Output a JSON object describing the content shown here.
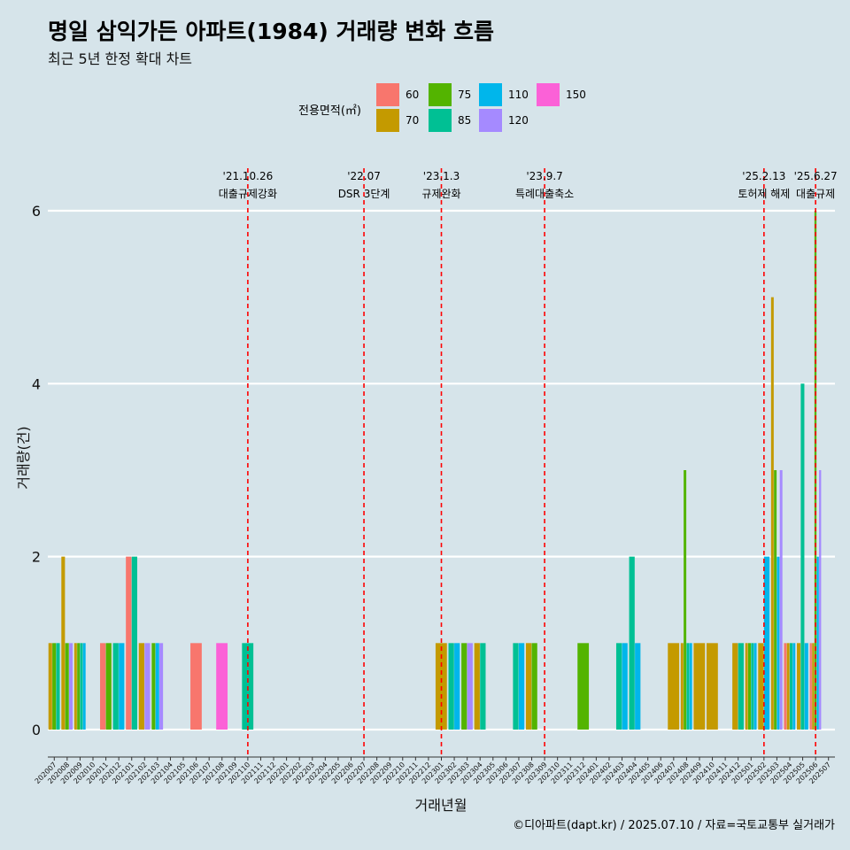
{
  "title": "명일 삼익가든 아파트(1984) 거래량 변화 흐름",
  "subtitle": "최근 5년 한정 확대 차트",
  "caption": "©디아파트(dapt.kr) / 2025.07.10 / 자료=국토교통부 실거래가",
  "legend": {
    "title": "전용면적(㎡)",
    "items": [
      {
        "label": "60",
        "color": "#F8766D"
      },
      {
        "label": "70",
        "color": "#C49A00"
      },
      {
        "label": "75",
        "color": "#53B400"
      },
      {
        "label": "85",
        "color": "#00C094"
      },
      {
        "label": "110",
        "color": "#00B6EB"
      },
      {
        "label": "120",
        "color": "#A58AFF"
      },
      {
        "label": "150",
        "color": "#FB61D7"
      }
    ]
  },
  "chart_data": {
    "type": "bar",
    "xlabel": "거래년월",
    "ylabel": "거래량(건)",
    "ylim": [
      0,
      6.3
    ],
    "yticks": [
      0,
      2,
      4,
      6
    ],
    "grid": true,
    "legend_position": "top",
    "categories": [
      "202007",
      "202008",
      "202009",
      "202010",
      "202011",
      "202012",
      "202101",
      "202102",
      "202103",
      "202104",
      "202105",
      "202106",
      "202107",
      "202108",
      "202109",
      "202110",
      "202111",
      "202112",
      "202201",
      "202202",
      "202203",
      "202204",
      "202205",
      "202206",
      "202207",
      "202208",
      "202209",
      "202210",
      "202211",
      "202212",
      "202301",
      "202302",
      "202303",
      "202304",
      "202305",
      "202306",
      "202307",
      "202308",
      "202309",
      "202310",
      "202311",
      "202312",
      "202401",
      "202402",
      "202403",
      "202404",
      "202405",
      "202406",
      "202407",
      "202408",
      "202409",
      "202410",
      "202411",
      "202412",
      "202501",
      "202502",
      "202503",
      "202504",
      "202505",
      "202506",
      "202507"
    ],
    "series": [
      {
        "name": "60",
        "color": "#F8766D",
        "values": [
          0,
          0,
          0,
          0,
          1,
          0,
          2,
          0,
          0,
          0,
          0,
          1,
          0,
          0,
          0,
          0,
          0,
          0,
          0,
          0,
          0,
          0,
          0,
          0,
          0,
          0,
          0,
          0,
          0,
          0,
          0,
          0,
          0,
          0,
          0,
          0,
          0,
          0,
          0,
          0,
          0,
          0,
          0,
          0,
          0,
          0,
          0,
          0,
          0,
          0,
          0,
          0,
          0,
          0,
          0,
          0,
          0,
          1,
          0,
          1,
          0
        ]
      },
      {
        "name": "70",
        "color": "#C49A00",
        "values": [
          1,
          2,
          1,
          0,
          0,
          0,
          0,
          1,
          0,
          0,
          0,
          0,
          0,
          0,
          0,
          0,
          0,
          0,
          0,
          0,
          0,
          0,
          0,
          0,
          0,
          0,
          0,
          0,
          0,
          0,
          1,
          0,
          0,
          1,
          0,
          0,
          0,
          1,
          0,
          0,
          0,
          0,
          0,
          0,
          0,
          0,
          0,
          0,
          1,
          1,
          1,
          1,
          0,
          1,
          1,
          1,
          5,
          1,
          1,
          1,
          0
        ]
      },
      {
        "name": "75",
        "color": "#53B400",
        "values": [
          1,
          1,
          1,
          0,
          1,
          0,
          0,
          0,
          1,
          0,
          0,
          0,
          0,
          0,
          0,
          0,
          0,
          0,
          0,
          0,
          0,
          0,
          0,
          0,
          0,
          0,
          0,
          0,
          0,
          0,
          0,
          0,
          1,
          0,
          0,
          0,
          0,
          1,
          0,
          0,
          0,
          1,
          0,
          0,
          0,
          0,
          0,
          0,
          0,
          3,
          0,
          0,
          0,
          0,
          1,
          0,
          3,
          0,
          0,
          6,
          0
        ]
      },
      {
        "name": "85",
        "color": "#00C094",
        "values": [
          1,
          0,
          1,
          0,
          0,
          1,
          2,
          0,
          0,
          0,
          0,
          0,
          0,
          0,
          0,
          1,
          0,
          0,
          0,
          0,
          0,
          0,
          0,
          0,
          0,
          0,
          0,
          0,
          0,
          0,
          0,
          1,
          0,
          1,
          0,
          0,
          1,
          0,
          0,
          0,
          0,
          0,
          0,
          0,
          1,
          2,
          0,
          0,
          0,
          1,
          0,
          0,
          0,
          1,
          1,
          0,
          0,
          1,
          4,
          0,
          0
        ]
      },
      {
        "name": "110",
        "color": "#00B6EB",
        "values": [
          0,
          0,
          1,
          0,
          0,
          1,
          0,
          0,
          1,
          0,
          0,
          0,
          0,
          0,
          0,
          0,
          0,
          0,
          0,
          0,
          0,
          0,
          0,
          0,
          0,
          0,
          0,
          0,
          0,
          0,
          0,
          1,
          0,
          0,
          0,
          0,
          1,
          0,
          0,
          0,
          0,
          0,
          0,
          0,
          1,
          1,
          0,
          0,
          0,
          1,
          0,
          0,
          0,
          0,
          1,
          2,
          2,
          1,
          1,
          2,
          0
        ]
      },
      {
        "name": "120",
        "color": "#A58AFF",
        "values": [
          0,
          1,
          0,
          0,
          0,
          0,
          0,
          1,
          1,
          0,
          0,
          0,
          0,
          0,
          0,
          0,
          0,
          0,
          0,
          0,
          0,
          0,
          0,
          0,
          0,
          0,
          0,
          0,
          0,
          0,
          0,
          0,
          1,
          0,
          0,
          0,
          0,
          0,
          0,
          0,
          0,
          0,
          0,
          0,
          0,
          0,
          0,
          0,
          0,
          0,
          0,
          0,
          0,
          0,
          0,
          0,
          3,
          0,
          0,
          3,
          0
        ]
      },
      {
        "name": "150",
        "color": "#FB61D7",
        "values": [
          0,
          0,
          0,
          0,
          0,
          0,
          0,
          0,
          0,
          0,
          0,
          0,
          0,
          1,
          0,
          0,
          0,
          0,
          0,
          0,
          0,
          0,
          0,
          0,
          0,
          0,
          0,
          0,
          0,
          0,
          0,
          0,
          0,
          0,
          0,
          0,
          0,
          0,
          0,
          0,
          0,
          0,
          0,
          0,
          0,
          0,
          0,
          0,
          0,
          0,
          0,
          0,
          0,
          0,
          0,
          0,
          0,
          0,
          0,
          0,
          0
        ]
      }
    ],
    "annotations": [
      {
        "x": "202110",
        "date": "'21.10.26",
        "text": "대출규제강화"
      },
      {
        "x": "202207",
        "date": "'22.07",
        "text": "DSR 3단계"
      },
      {
        "x": "202301",
        "date": "'23.1.3",
        "text": "규제완화"
      },
      {
        "x": "202309",
        "date": "'23.9.7",
        "text": "특례대출축소"
      },
      {
        "x": "202502",
        "date": "'25.2.13",
        "text": "토허제 해제"
      },
      {
        "x": "202506",
        "date": "'25.6.27",
        "text": "대출규제"
      }
    ]
  }
}
